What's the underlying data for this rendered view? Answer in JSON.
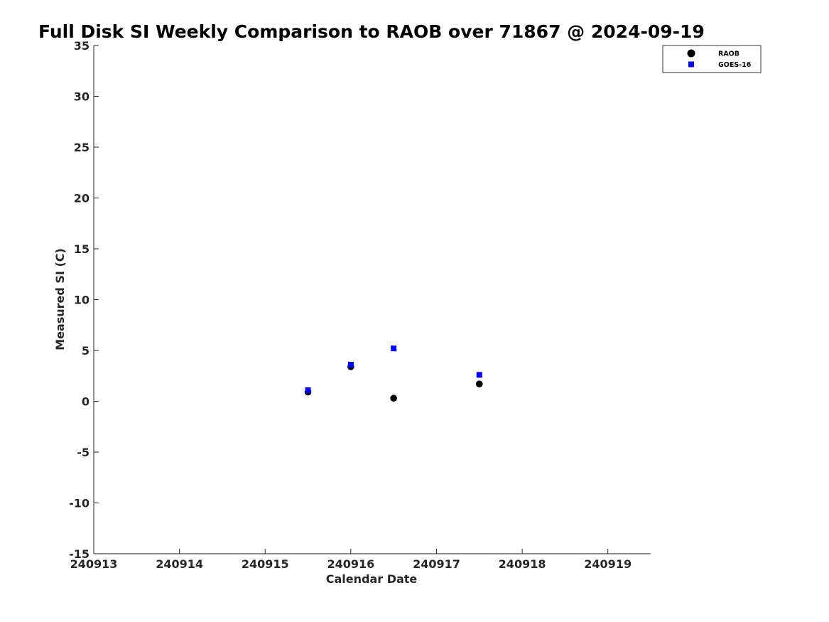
{
  "chart_data": {
    "type": "scatter",
    "title": "Full Disk SI Weekly Comparison to RAOB over 71867 @ 2024-09-19",
    "xlabel": "Calendar Date",
    "ylabel": "Measured SI (C)",
    "xlim": [
      240913,
      240919.5
    ],
    "ylim": [
      -15,
      35
    ],
    "xticks": [
      240913,
      240914,
      240915,
      240916,
      240917,
      240918,
      240919
    ],
    "xtick_labels": [
      "240913",
      "240914",
      "240915",
      "240916",
      "240917",
      "240918",
      "240919"
    ],
    "yticks": [
      35,
      30,
      25,
      20,
      15,
      10,
      5,
      0,
      -5,
      -10,
      -15
    ],
    "ytick_labels": [
      "35",
      "30",
      "25",
      "20",
      "15",
      "10",
      "5",
      "0",
      "-5",
      "-10",
      "-15"
    ],
    "grid": false,
    "legend_position": "top-right",
    "series": [
      {
        "name": "RAOB",
        "marker": "circle",
        "color": "#000000",
        "x": [
          240915.5,
          240916.0,
          240916.5,
          240917.5
        ],
        "y": [
          0.9,
          3.4,
          0.3,
          1.7
        ]
      },
      {
        "name": "GOES-16",
        "marker": "square",
        "color": "#0000ff",
        "x": [
          240915.5,
          240916.0,
          240916.5,
          240917.5
        ],
        "y": [
          1.1,
          3.6,
          5.2,
          2.6
        ]
      }
    ]
  }
}
